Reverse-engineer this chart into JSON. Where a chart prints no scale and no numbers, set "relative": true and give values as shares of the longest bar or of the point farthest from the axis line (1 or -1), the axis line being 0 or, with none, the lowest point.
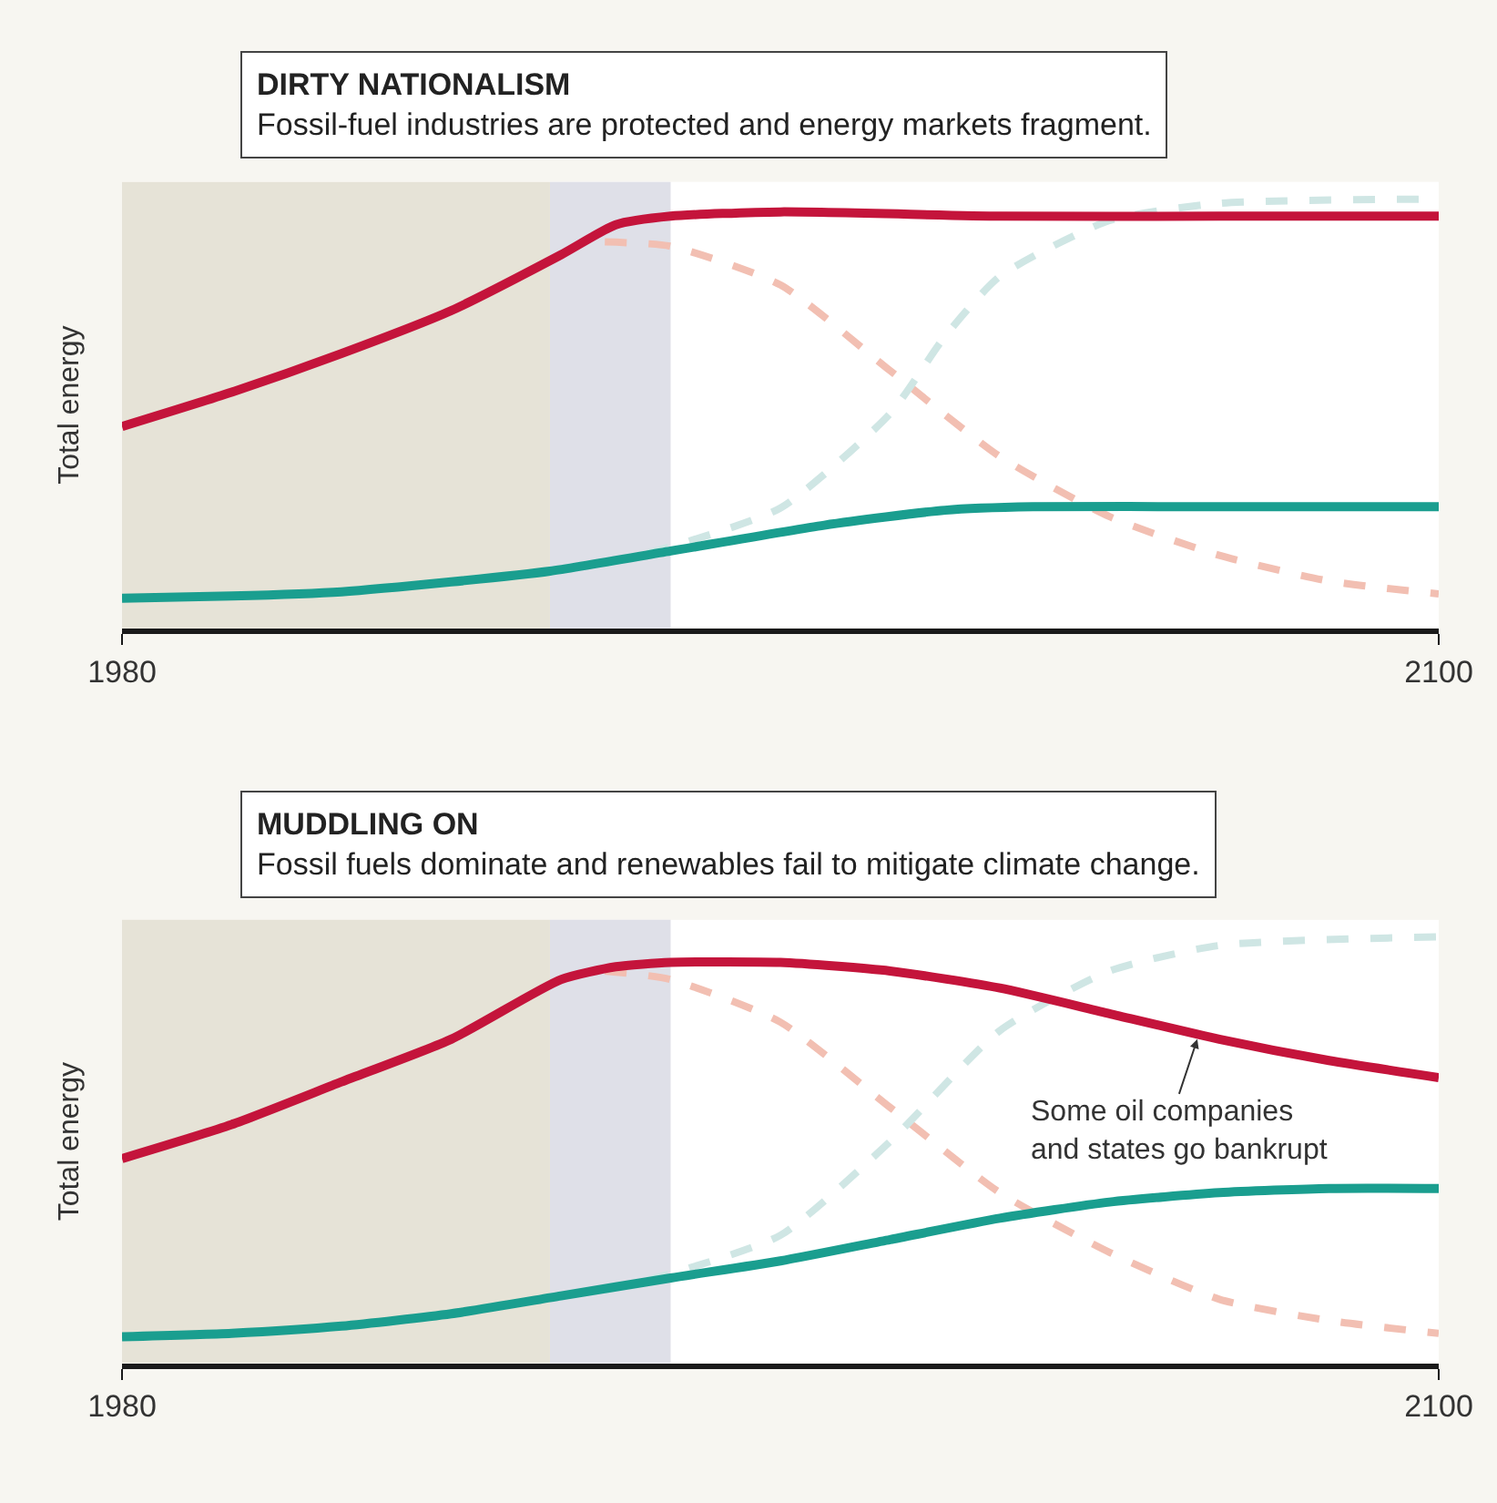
{
  "chart_data": [
    {
      "type": "line",
      "title": "DIRTY NATIONALISM",
      "subtitle": "Fossil-fuel industries are protected and energy markets fragment.",
      "ylabel": "Total energy",
      "relative": true,
      "xlim": [
        1980,
        2100
      ],
      "xticks": [
        1980,
        2100
      ],
      "tick_labels": "x",
      "grid": false,
      "series": [
        {
          "color": "#f2bfb2",
          "line_style": "dashed",
          "x": [
            2024,
            2030,
            2040,
            2050,
            2060,
            2070,
            2080,
            2090,
            2100
          ],
          "values": [
            0.9,
            0.89,
            0.8,
            0.6,
            0.4,
            0.26,
            0.17,
            0.11,
            0.08
          ]
        },
        {
          "color": "#cfe6e4",
          "line_style": "dashed",
          "x": [
            2024,
            2030,
            2040,
            2050,
            2055,
            2060,
            2070,
            2080,
            2100
          ],
          "values": [
            0.15,
            0.19,
            0.28,
            0.5,
            0.68,
            0.82,
            0.95,
            0.99,
            1.0
          ]
        },
        {
          "color": "#c4143b",
          "line_style": "solid",
          "x": [
            1980,
            1990,
            2000,
            2010,
            2020,
            2025,
            2030,
            2040,
            2060,
            2080,
            2100
          ],
          "values": [
            0.47,
            0.55,
            0.64,
            0.74,
            0.87,
            0.94,
            0.96,
            0.97,
            0.96,
            0.96,
            0.96
          ]
        },
        {
          "color": "#1a9e8f",
          "line_style": "solid",
          "x": [
            1980,
            1990,
            2000,
            2010,
            2019,
            2030,
            2044,
            2055,
            2063,
            2080,
            2100
          ],
          "values": [
            0.07,
            0.075,
            0.085,
            0.108,
            0.133,
            0.18,
            0.24,
            0.275,
            0.283,
            0.283,
            0.283
          ]
        }
      ],
      "bands": [
        {
          "axis": "x",
          "from": 1980,
          "to": 2019,
          "color": "#e6e3d7"
        },
        {
          "axis": "x",
          "from": 2019,
          "to": 2030,
          "color": "#dfe0e8"
        }
      ]
    },
    {
      "type": "line",
      "title": "MUDDLING ON",
      "subtitle": "Fossil fuels dominate and renewables fail to mitigate climate change.",
      "ylabel": "Total energy",
      "relative": true,
      "xlim": [
        1980,
        2100
      ],
      "xticks": [
        1980,
        2100
      ],
      "tick_labels": "x",
      "grid": false,
      "series": [
        {
          "color": "#f2bfb2",
          "line_style": "dashed",
          "x": [
            2024,
            2030,
            2040,
            2050,
            2060,
            2070,
            2080,
            2090,
            2100
          ],
          "values": [
            0.92,
            0.9,
            0.8,
            0.6,
            0.4,
            0.26,
            0.15,
            0.1,
            0.07
          ]
        },
        {
          "color": "#cfe6e4",
          "line_style": "dashed",
          "x": [
            2024,
            2030,
            2040,
            2050,
            2060,
            2070,
            2080,
            2100
          ],
          "values": [
            0.17,
            0.21,
            0.3,
            0.52,
            0.78,
            0.92,
            0.98,
            1.0
          ]
        },
        {
          "color": "#c4143b",
          "line_style": "solid",
          "x": [
            1980,
            1990,
            2000,
            2010,
            2020,
            2025,
            2030,
            2040,
            2050,
            2060,
            2070,
            2080,
            2090,
            2100
          ],
          "values": [
            0.48,
            0.56,
            0.66,
            0.76,
            0.9,
            0.93,
            0.94,
            0.94,
            0.92,
            0.88,
            0.82,
            0.76,
            0.71,
            0.67
          ]
        },
        {
          "color": "#1a9e8f",
          "line_style": "solid",
          "x": [
            1980,
            1990,
            2000,
            2010,
            2020,
            2030,
            2040,
            2050,
            2060,
            2070,
            2080,
            2090,
            2100
          ],
          "values": [
            0.062,
            0.07,
            0.087,
            0.116,
            0.158,
            0.2,
            0.24,
            0.29,
            0.34,
            0.378,
            0.4,
            0.41,
            0.41
          ]
        }
      ],
      "bands": [
        {
          "axis": "x",
          "from": 1980,
          "to": 2019,
          "color": "#e6e3d7"
        },
        {
          "axis": "x",
          "from": 2019,
          "to": 2030,
          "color": "#dfe0e8"
        }
      ],
      "annotations": [
        {
          "text": "Some oil companies\nand states go bankrupt",
          "x": 2078,
          "y": 0.76
        }
      ]
    }
  ]
}
